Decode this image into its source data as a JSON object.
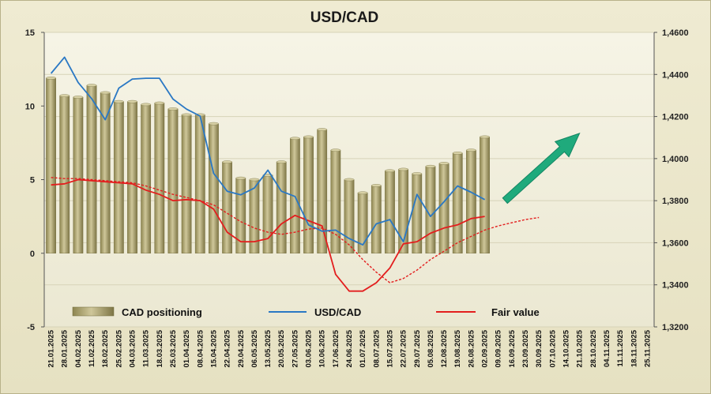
{
  "chart_data": {
    "type": "bar+line",
    "title": "USD/CAD",
    "colors": {
      "bars": "#a9a06a",
      "usdcad": "#2a78c4",
      "fair_value": "#e31e1e",
      "arrow": "#1faa7c"
    },
    "y_left": {
      "range": [
        -5,
        15
      ],
      "ticks": [
        "-5",
        "0",
        "5",
        "10",
        "15"
      ]
    },
    "y_right": {
      "range": [
        1.32,
        1.46
      ],
      "ticks": [
        "1,3200",
        "1,3400",
        "1,3600",
        "1,3800",
        "1,4000",
        "1,4200",
        "1,4400",
        "1,4600"
      ]
    },
    "x_labels": [
      "21.01.2025",
      "28.01.2025",
      "04.02.2025",
      "11.02.2025",
      "18.02.2025",
      "25.02.2025",
      "04.03.2025",
      "11.03.2025",
      "18.03.2025",
      "25.03.2025",
      "01.04.2025",
      "08.04.2025",
      "15.04.2025",
      "22.04.2025",
      "29.04.2025",
      "06.05.2025",
      "13.05.2025",
      "20.05.2025",
      "27.05.2025",
      "03.06.2025",
      "10.06.2025",
      "17.06.2025",
      "24.06.2025",
      "01.07.2025",
      "08.07.2025",
      "15.07.2025",
      "22.07.2025",
      "29.07.2025",
      "05.08.2025",
      "12.08.2025",
      "19.08.2025",
      "26.08.2025",
      "02.09.2025",
      "09.09.2025",
      "16.09.2025",
      "23.09.2025",
      "30.09.2025",
      "07.10.2025",
      "14.10.2025",
      "21.10.2025",
      "28.10.2025",
      "04.11.2025",
      "11.11.2025",
      "18.11.2025",
      "25.11.2025"
    ],
    "series": [
      {
        "name": "CAD positioning",
        "type": "bar",
        "axis": "left",
        "values": [
          11.9,
          10.7,
          10.6,
          11.4,
          10.9,
          10.3,
          10.3,
          10.1,
          10.2,
          9.8,
          9.4,
          9.4,
          8.8,
          6.2,
          5.1,
          5.0,
          5.3,
          6.2,
          7.8,
          7.9,
          8.4,
          7.0,
          5.0,
          4.1,
          4.6,
          5.6,
          5.7,
          5.4,
          5.9,
          6.1,
          6.8,
          7.0,
          7.9
        ]
      },
      {
        "name": "USD/CAD",
        "type": "line",
        "axis": "right",
        "values": [
          1.4405,
          1.4482,
          1.4362,
          1.4285,
          1.4185,
          1.4335,
          1.4378,
          1.4382,
          1.4382,
          1.4283,
          1.4235,
          1.4202,
          1.393,
          1.3845,
          1.3828,
          1.386,
          1.3945,
          1.3845,
          1.382,
          1.3685,
          1.3655,
          1.366,
          1.362,
          1.359,
          1.369,
          1.371,
          1.3605,
          1.383,
          1.3725,
          1.3795,
          1.387,
          1.384,
          1.3805
        ]
      },
      {
        "name": "Fair value",
        "type": "line",
        "axis": "right",
        "values": [
          1.3875,
          1.388,
          1.39,
          1.3895,
          1.389,
          1.3885,
          1.388,
          1.385,
          1.383,
          1.38,
          1.3805,
          1.38,
          1.376,
          1.365,
          1.3605,
          1.3605,
          1.362,
          1.369,
          1.373,
          1.3705,
          1.368,
          1.345,
          1.337,
          1.337,
          1.341,
          1.348,
          1.3595,
          1.3605,
          1.3645,
          1.367,
          1.3685,
          1.3715,
          1.3725
        ]
      },
      {
        "name": "Fair value trend",
        "type": "dashed-line",
        "axis": "right",
        "values": [
          1.391,
          1.3905,
          1.3905,
          1.39,
          1.3895,
          1.389,
          1.3885,
          1.387,
          1.385,
          1.383,
          1.3815,
          1.38,
          1.378,
          1.374,
          1.37,
          1.367,
          1.365,
          1.364,
          1.365,
          1.3665,
          1.367,
          1.364,
          1.359,
          1.352,
          1.346,
          1.341,
          1.343,
          1.347,
          1.352,
          1.356,
          1.36,
          1.363,
          1.366,
          1.368,
          1.3695,
          1.371,
          1.372
        ]
      }
    ],
    "legend": [
      {
        "label": "CAD positioning",
        "style": "bar"
      },
      {
        "label": "USD/CAD",
        "style": "line"
      },
      {
        "label": "Fair value",
        "style": "line"
      }
    ],
    "annotations": [
      {
        "type": "arrow",
        "direction": "up-right",
        "from_index": 33.5,
        "to_index": 39,
        "y_from": 1.38,
        "y_to": 1.412
      }
    ]
  }
}
